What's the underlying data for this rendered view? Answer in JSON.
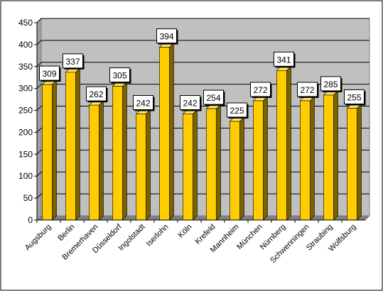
{
  "chart_data": {
    "type": "bar",
    "categories": [
      "Augsburg",
      "Berlin",
      "Bremerhaven",
      "Düsseldorf",
      "Ingolstadt",
      "Iserlohn",
      "Köln",
      "Krefeld",
      "Mannheim",
      "München",
      "Nürnberg",
      "Schwenningen",
      "Straubing",
      "Wolfsburg"
    ],
    "values": [
      309,
      337,
      262,
      305,
      242,
      394,
      242,
      254,
      225,
      272,
      341,
      272,
      285,
      255
    ],
    "title": "",
    "xlabel": "",
    "ylabel": "",
    "ylim": [
      0,
      450
    ],
    "yticks": [
      0,
      50,
      100,
      150,
      200,
      250,
      300,
      350,
      400,
      450
    ],
    "grid": true,
    "legend": "none",
    "colors": {
      "bar": "#FFCC00",
      "bar_side": "#7A6200",
      "plot_background": "#C0C0C0",
      "plot_floor": "#808080",
      "gridline": "#000000",
      "label_box": "#FFFFFF",
      "label_shadow": "#000000"
    }
  }
}
